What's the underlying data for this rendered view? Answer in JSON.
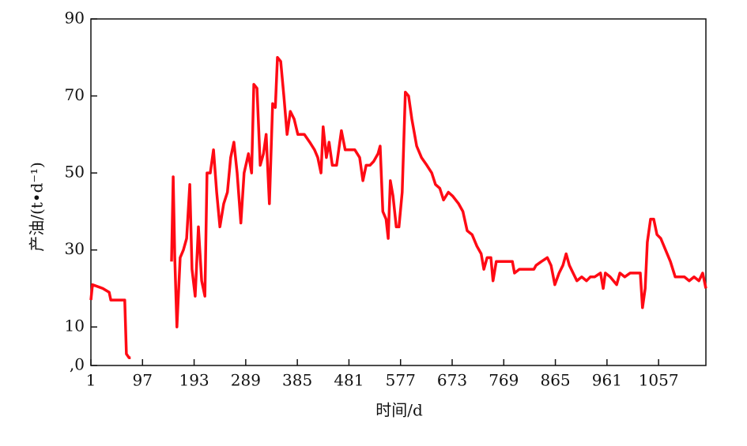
{
  "chart_data": {
    "type": "line",
    "x_label": "时间/d",
    "y_label": "产油/(t•d⁻¹)",
    "x": [
      1,
      4,
      23,
      35,
      38,
      52,
      64,
      67,
      72,
      75,
      110,
      151,
      154,
      157,
      161,
      167,
      173,
      179,
      185,
      189,
      195,
      201,
      207,
      213,
      217,
      223,
      229,
      235,
      241,
      248,
      255,
      261,
      267,
      273,
      280,
      286,
      294,
      300,
      304,
      310,
      316,
      322,
      327,
      333,
      339,
      344,
      348,
      354,
      360,
      366,
      372,
      379,
      386,
      398,
      408,
      417,
      423,
      429,
      433,
      439,
      444,
      450,
      458,
      467,
      474,
      483,
      492,
      501,
      507,
      513,
      520,
      527,
      535,
      539,
      544,
      550,
      554,
      558,
      563,
      569,
      574,
      580,
      586,
      592,
      598,
      607,
      616,
      626,
      635,
      642,
      650,
      657,
      666,
      674,
      685,
      693,
      701,
      710,
      719,
      727,
      732,
      738,
      745,
      749,
      755,
      766,
      777,
      785,
      789,
      798,
      807,
      817,
      825,
      829,
      839,
      850,
      857,
      864,
      872,
      879,
      885,
      891,
      898,
      905,
      914,
      923,
      930,
      938,
      949,
      954,
      958,
      967,
      979,
      985,
      994,
      1004,
      1016,
      1023,
      1027,
      1032,
      1036,
      1042,
      1048,
      1054,
      1061,
      1070,
      1079,
      1088,
      1097,
      1105,
      1114,
      1123,
      1132,
      1139,
      1145
    ],
    "series": [
      {
        "color": "#ff0a14",
        "values": [
          17,
          21,
          20,
          19,
          17,
          17,
          17,
          3,
          2,
          2,
          null,
          27,
          49,
          28,
          10,
          28,
          30,
          33,
          47,
          25,
          18,
          36,
          22,
          18,
          50,
          50,
          56,
          45,
          36,
          42,
          45,
          54,
          58,
          50,
          37,
          50,
          55,
          50,
          73,
          72,
          52,
          55,
          60,
          42,
          68,
          67,
          80,
          79,
          70,
          60,
          66,
          64,
          60,
          60,
          58,
          56,
          54,
          50,
          62,
          54,
          58,
          52,
          52,
          61,
          56,
          56,
          56,
          54,
          48,
          52,
          52,
          53,
          55,
          57,
          40,
          38,
          33,
          48,
          44,
          36,
          36,
          45,
          71,
          70,
          64,
          57,
          54,
          52,
          50,
          47,
          46,
          43,
          45,
          44,
          42,
          40,
          35,
          34,
          31,
          29,
          25,
          28,
          28,
          22,
          27,
          27,
          27,
          27,
          24,
          25,
          25,
          25,
          25,
          26,
          27,
          28,
          26,
          21,
          24,
          26,
          29,
          26,
          24,
          22,
          23,
          22,
          23,
          23,
          24,
          20,
          24,
          23,
          21,
          24,
          23,
          24,
          24,
          24,
          15,
          20,
          32,
          38,
          38,
          34,
          33,
          30,
          27,
          23,
          23,
          23,
          22,
          23,
          22,
          24,
          20
        ]
      }
    ],
    "xlim": [
      1,
      1145
    ],
    "xticks": [
      1,
      97,
      193,
      289,
      385,
      481,
      577,
      673,
      769,
      865,
      961,
      1057
    ],
    "ylim": [
      0,
      90
    ],
    "yticks": [
      {
        "value": 0,
        "label": ",0"
      },
      10,
      30,
      50,
      70,
      90
    ]
  }
}
